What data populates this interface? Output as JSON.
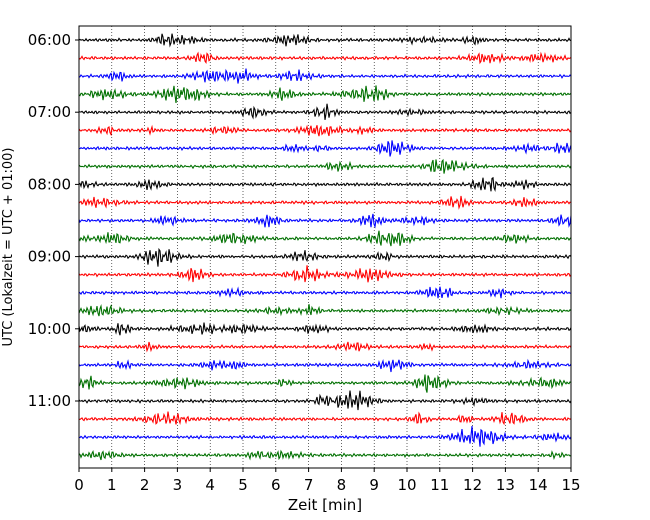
{
  "chart_data": {
    "type": "line",
    "title": "",
    "xlabel": "Zeit  [min]",
    "ylabel": "UTC (Lokalzeit = UTC + 01:00)",
    "xlim": [
      0,
      15
    ],
    "x_ticks": [
      "0",
      "1",
      "2",
      "3",
      "4",
      "5",
      "6",
      "7",
      "8",
      "9",
      "10",
      "11",
      "12",
      "13",
      "14",
      "15"
    ],
    "y_ticks": [
      "06:00",
      "07:00",
      "08:00",
      "09:00",
      "10:00",
      "11:00"
    ],
    "grid": "vertical dotted lines at each minute",
    "trace_colors": [
      "#000000",
      "#ff0000",
      "#0000ff",
      "#007000"
    ],
    "series_note": "24 helicorder traces, one per 15 minutes, 06:00 to 11:45 UTC, colors cycling black/red/blue/green",
    "series": [
      {
        "start": "06:00",
        "color": "#000000"
      },
      {
        "start": "06:15",
        "color": "#ff0000"
      },
      {
        "start": "06:30",
        "color": "#0000ff"
      },
      {
        "start": "06:45",
        "color": "#007000"
      },
      {
        "start": "07:00",
        "color": "#000000"
      },
      {
        "start": "07:15",
        "color": "#ff0000"
      },
      {
        "start": "07:30",
        "color": "#0000ff"
      },
      {
        "start": "07:45",
        "color": "#007000"
      },
      {
        "start": "08:00",
        "color": "#000000"
      },
      {
        "start": "08:15",
        "color": "#ff0000"
      },
      {
        "start": "08:30",
        "color": "#0000ff"
      },
      {
        "start": "08:45",
        "color": "#007000"
      },
      {
        "start": "09:00",
        "color": "#000000"
      },
      {
        "start": "09:15",
        "color": "#ff0000"
      },
      {
        "start": "09:30",
        "color": "#0000ff"
      },
      {
        "start": "09:45",
        "color": "#007000"
      },
      {
        "start": "10:00",
        "color": "#000000"
      },
      {
        "start": "10:15",
        "color": "#ff0000"
      },
      {
        "start": "10:30",
        "color": "#0000ff"
      },
      {
        "start": "10:45",
        "color": "#007000"
      },
      {
        "start": "11:00",
        "color": "#000000"
      },
      {
        "start": "11:15",
        "color": "#ff0000"
      },
      {
        "start": "11:30",
        "color": "#0000ff"
      },
      {
        "start": "11:45",
        "color": "#007000"
      }
    ]
  }
}
